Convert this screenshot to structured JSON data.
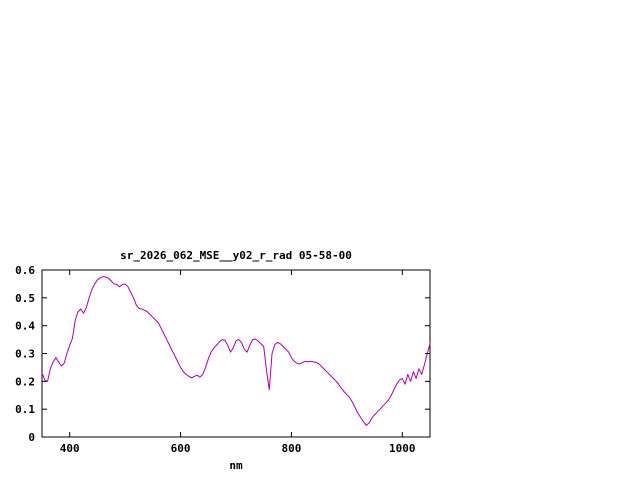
{
  "page": {
    "background": "#ffffff"
  },
  "chart_data": {
    "type": "line",
    "title": "sr_2026_062_MSE__y02_r_rad 05-58-00",
    "xlabel": "nm",
    "ylabel": "",
    "xlim": [
      350,
      1050
    ],
    "ylim": [
      0,
      0.6
    ],
    "xticks": [
      400,
      600,
      800,
      1000
    ],
    "xtick_labels": [
      "400",
      "600",
      "800",
      "1000"
    ],
    "yticks": [
      0,
      0.1,
      0.2,
      0.3,
      0.4,
      0.5,
      0.6
    ],
    "ytick_labels": [
      "0",
      "0.1",
      "0.2",
      "0.3",
      "0.4",
      "0.5",
      "0.6"
    ],
    "grid": false,
    "legend": "none",
    "line_color": "#aa00aa",
    "axis_color": "#000000",
    "x": [
      350,
      355,
      360,
      365,
      370,
      375,
      380,
      385,
      390,
      395,
      400,
      405,
      410,
      415,
      420,
      425,
      430,
      435,
      440,
      445,
      450,
      455,
      460,
      465,
      470,
      475,
      480,
      485,
      490,
      495,
      500,
      505,
      510,
      515,
      520,
      525,
      530,
      535,
      540,
      545,
      550,
      555,
      560,
      565,
      570,
      575,
      580,
      585,
      590,
      595,
      600,
      605,
      610,
      615,
      620,
      625,
      630,
      635,
      640,
      645,
      650,
      655,
      660,
      665,
      670,
      675,
      680,
      685,
      690,
      695,
      700,
      705,
      710,
      715,
      720,
      725,
      730,
      735,
      740,
      745,
      750,
      755,
      760,
      765,
      770,
      775,
      780,
      785,
      790,
      795,
      800,
      805,
      810,
      815,
      820,
      825,
      830,
      835,
      840,
      845,
      850,
      855,
      860,
      865,
      870,
      875,
      880,
      885,
      890,
      895,
      900,
      905,
      910,
      915,
      920,
      925,
      930,
      935,
      940,
      945,
      950,
      955,
      960,
      965,
      970,
      975,
      980,
      985,
      990,
      995,
      1000,
      1005,
      1010,
      1015,
      1020,
      1025,
      1030,
      1035,
      1040,
      1045,
      1050
    ],
    "y": [
      0.23,
      0.205,
      0.2,
      0.245,
      0.27,
      0.285,
      0.27,
      0.255,
      0.265,
      0.3,
      0.33,
      0.355,
      0.42,
      0.45,
      0.46,
      0.445,
      0.465,
      0.5,
      0.53,
      0.55,
      0.565,
      0.572,
      0.576,
      0.575,
      0.57,
      0.56,
      0.55,
      0.548,
      0.54,
      0.548,
      0.55,
      0.54,
      0.52,
      0.5,
      0.475,
      0.462,
      0.46,
      0.455,
      0.45,
      0.44,
      0.43,
      0.42,
      0.41,
      0.39,
      0.37,
      0.35,
      0.33,
      0.31,
      0.29,
      0.27,
      0.25,
      0.235,
      0.225,
      0.218,
      0.212,
      0.218,
      0.222,
      0.215,
      0.225,
      0.25,
      0.28,
      0.305,
      0.32,
      0.33,
      0.342,
      0.35,
      0.348,
      0.33,
      0.305,
      0.32,
      0.345,
      0.35,
      0.34,
      0.315,
      0.305,
      0.33,
      0.35,
      0.352,
      0.345,
      0.335,
      0.325,
      0.24,
      0.17,
      0.3,
      0.332,
      0.34,
      0.335,
      0.325,
      0.315,
      0.305,
      0.285,
      0.272,
      0.265,
      0.262,
      0.268,
      0.272,
      0.27,
      0.272,
      0.27,
      0.268,
      0.262,
      0.252,
      0.242,
      0.232,
      0.222,
      0.212,
      0.202,
      0.19,
      0.175,
      0.163,
      0.152,
      0.142,
      0.125,
      0.105,
      0.085,
      0.07,
      0.055,
      0.042,
      0.05,
      0.068,
      0.08,
      0.09,
      0.1,
      0.112,
      0.122,
      0.133,
      0.15,
      0.17,
      0.19,
      0.205,
      0.21,
      0.19,
      0.225,
      0.2,
      0.235,
      0.21,
      0.245,
      0.225,
      0.26,
      0.3,
      0.335
    ]
  }
}
